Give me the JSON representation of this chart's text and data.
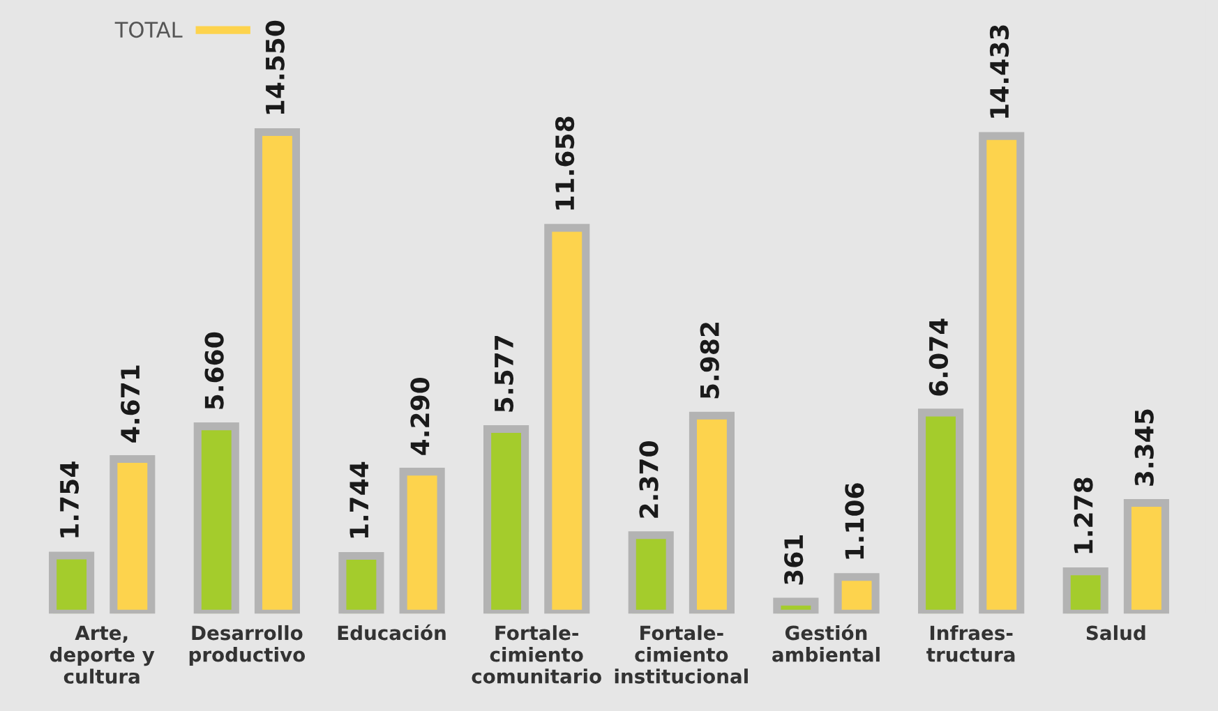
{
  "chart_data": {
    "type": "bar",
    "categories": [
      "Arte,\ndeporte y\ncultura",
      "Desarrollo\nproductivo",
      "Educación",
      "Fortale-\ncimiento\ncomunitario",
      "Fortale-\ncimiento\ninstitucional",
      "Gestión\nambiental",
      "Infraes-\ntructura",
      "Salud"
    ],
    "series": [
      {
        "color": "#a4cc2c",
        "values": [
          1754,
          5660,
          1744,
          5577,
          2370,
          361,
          6074,
          1278
        ],
        "value_labels": [
          "1.754",
          "5.660",
          "1.744",
          "5.577",
          "2.370",
          "361",
          "6.074",
          "1.278"
        ]
      },
      {
        "name": "TOTAL",
        "color": "#fdd34d",
        "values": [
          4671,
          14550,
          4290,
          11658,
          5982,
          1106,
          14433,
          3345
        ],
        "value_labels": [
          "4.671",
          "14.550",
          "4.290",
          "11.658",
          "5.982",
          "1.106",
          "14.433",
          "3.345"
        ]
      }
    ],
    "legend": "top left",
    "grid": false
  }
}
